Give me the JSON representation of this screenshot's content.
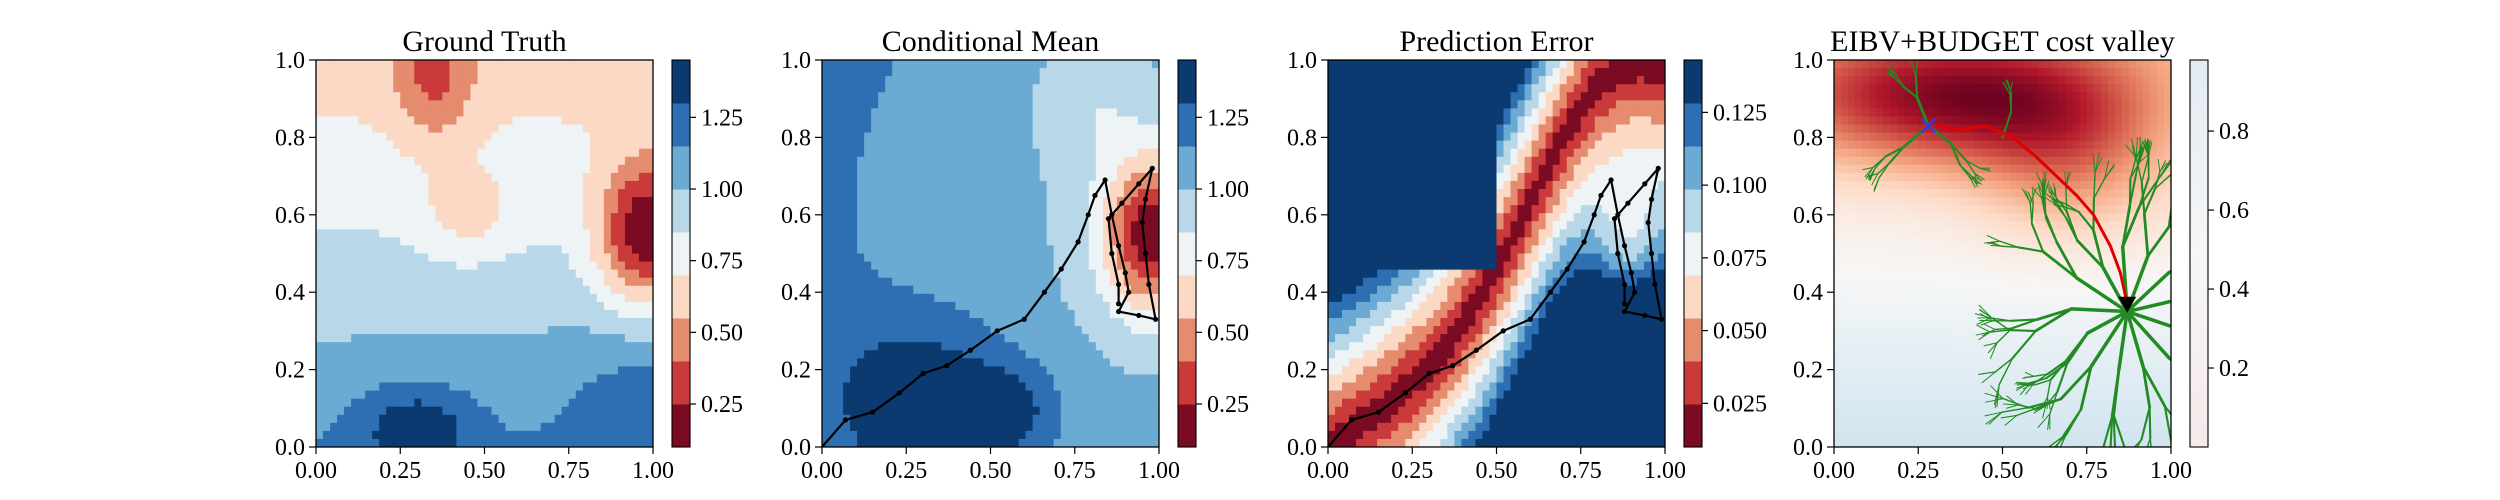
{
  "figure": {
    "description_free": true
  },
  "chart_data": [
    {
      "type": "heatmap",
      "title": "Ground Truth",
      "x_ticks": [
        "0.00",
        "0.25",
        "0.50",
        "0.75",
        "1.00"
      ],
      "y_ticks": [
        "0.0",
        "0.2",
        "0.4",
        "0.6",
        "0.8",
        "1.0"
      ],
      "xlim": [
        0,
        1
      ],
      "ylim": [
        0,
        1
      ],
      "colorbar": {
        "ticks": [
          "0.25",
          "0.50",
          "0.75",
          "1.00",
          "1.25"
        ],
        "tick_values": [
          0.25,
          0.5,
          0.75,
          1.0,
          1.25
        ],
        "range": [
          0.1,
          1.45
        ],
        "levels": 9,
        "colormap": "RdBu"
      },
      "path": []
    },
    {
      "type": "heatmap",
      "title": "Conditional Mean",
      "x_ticks": [
        "0.00",
        "0.25",
        "0.50",
        "0.75",
        "1.00"
      ],
      "y_ticks": [
        "0.0",
        "0.2",
        "0.4",
        "0.6",
        "0.8",
        "1.0"
      ],
      "xlim": [
        0,
        1
      ],
      "ylim": [
        0,
        1
      ],
      "colorbar": {
        "ticks": [
          "0.25",
          "0.50",
          "0.75",
          "1.00",
          "1.25"
        ],
        "tick_values": [
          0.25,
          0.5,
          0.75,
          1.0,
          1.25
        ],
        "range": [
          0.1,
          1.45
        ],
        "levels": 9,
        "colormap": "RdBu"
      },
      "path": [
        [
          0.0,
          0.0
        ],
        [
          0.07,
          0.07
        ],
        [
          0.15,
          0.09
        ],
        [
          0.23,
          0.14
        ],
        [
          0.3,
          0.19
        ],
        [
          0.37,
          0.21
        ],
        [
          0.44,
          0.25
        ],
        [
          0.52,
          0.3
        ],
        [
          0.6,
          0.33
        ],
        [
          0.66,
          0.4
        ],
        [
          0.71,
          0.46
        ],
        [
          0.76,
          0.53
        ],
        [
          0.79,
          0.6
        ],
        [
          0.81,
          0.65
        ],
        [
          0.84,
          0.69
        ],
        [
          0.86,
          0.6
        ],
        [
          0.88,
          0.52
        ],
        [
          0.9,
          0.45
        ],
        [
          0.91,
          0.4
        ],
        [
          0.88,
          0.35
        ],
        [
          0.94,
          0.34
        ],
        [
          0.99,
          0.33
        ],
        [
          0.97,
          0.42
        ],
        [
          0.96,
          0.5
        ],
        [
          0.95,
          0.58
        ],
        [
          0.96,
          0.64
        ],
        [
          0.98,
          0.72
        ],
        [
          0.94,
          0.68
        ],
        [
          0.89,
          0.63
        ],
        [
          0.85,
          0.59
        ],
        [
          0.86,
          0.5
        ],
        [
          0.88,
          0.42
        ],
        [
          0.88,
          0.37
        ]
      ]
    },
    {
      "type": "heatmap",
      "title": "Prediction Error",
      "x_ticks": [
        "0.00",
        "0.25",
        "0.50",
        "0.75",
        "1.00"
      ],
      "y_ticks": [
        "0.0",
        "0.2",
        "0.4",
        "0.6",
        "0.8",
        "1.0"
      ],
      "xlim": [
        0,
        1
      ],
      "ylim": [
        0,
        1
      ],
      "colorbar": {
        "ticks": [
          "0.025",
          "0.050",
          "0.075",
          "0.100",
          "0.125"
        ],
        "tick_values": [
          0.025,
          0.05,
          0.075,
          0.1,
          0.125
        ],
        "range": [
          0.01,
          0.143
        ],
        "levels": 9,
        "colormap": "RdBu"
      },
      "path": [
        [
          0.0,
          0.0
        ],
        [
          0.07,
          0.07
        ],
        [
          0.15,
          0.09
        ],
        [
          0.23,
          0.14
        ],
        [
          0.3,
          0.19
        ],
        [
          0.37,
          0.21
        ],
        [
          0.44,
          0.25
        ],
        [
          0.52,
          0.3
        ],
        [
          0.6,
          0.33
        ],
        [
          0.66,
          0.4
        ],
        [
          0.71,
          0.46
        ],
        [
          0.76,
          0.53
        ],
        [
          0.79,
          0.6
        ],
        [
          0.81,
          0.65
        ],
        [
          0.84,
          0.69
        ],
        [
          0.86,
          0.6
        ],
        [
          0.88,
          0.52
        ],
        [
          0.9,
          0.45
        ],
        [
          0.91,
          0.4
        ],
        [
          0.88,
          0.35
        ],
        [
          0.94,
          0.34
        ],
        [
          0.99,
          0.33
        ],
        [
          0.97,
          0.42
        ],
        [
          0.96,
          0.5
        ],
        [
          0.95,
          0.58
        ],
        [
          0.96,
          0.64
        ],
        [
          0.98,
          0.72
        ],
        [
          0.94,
          0.68
        ],
        [
          0.89,
          0.63
        ],
        [
          0.85,
          0.59
        ],
        [
          0.86,
          0.5
        ],
        [
          0.88,
          0.42
        ],
        [
          0.88,
          0.37
        ]
      ]
    },
    {
      "type": "heatmap",
      "title": "EIBV+BUDGET cost valley",
      "x_ticks": [
        "0.00",
        "0.25",
        "0.50",
        "0.75",
        "1.00"
      ],
      "y_ticks": [
        "0.0",
        "0.2",
        "0.4",
        "0.6",
        "0.8",
        "1.0"
      ],
      "xlim": [
        0,
        1
      ],
      "ylim": [
        0,
        1
      ],
      "colorbar": {
        "ticks": [
          "0.2",
          "0.4",
          "0.6",
          "0.8"
        ],
        "tick_values": [
          0.2,
          0.4,
          0.6,
          0.8
        ],
        "range": [
          0.0,
          0.98
        ],
        "levels": 0,
        "colormap": "RdBu"
      },
      "tree_root": [
        0.87,
        0.35
      ],
      "start_marker": [
        0.87,
        0.37
      ],
      "target_marker": [
        0.28,
        0.83
      ],
      "best_path": [
        [
          0.87,
          0.37
        ],
        [
          0.85,
          0.45
        ],
        [
          0.82,
          0.52
        ],
        [
          0.77,
          0.6
        ],
        [
          0.72,
          0.65
        ],
        [
          0.66,
          0.7
        ],
        [
          0.6,
          0.75
        ],
        [
          0.53,
          0.8
        ],
        [
          0.45,
          0.83
        ],
        [
          0.37,
          0.82
        ],
        [
          0.3,
          0.83
        ]
      ],
      "colors": {
        "tree": "#228b22",
        "best_path": "#e00000",
        "target": "#3a3ad0"
      }
    }
  ]
}
